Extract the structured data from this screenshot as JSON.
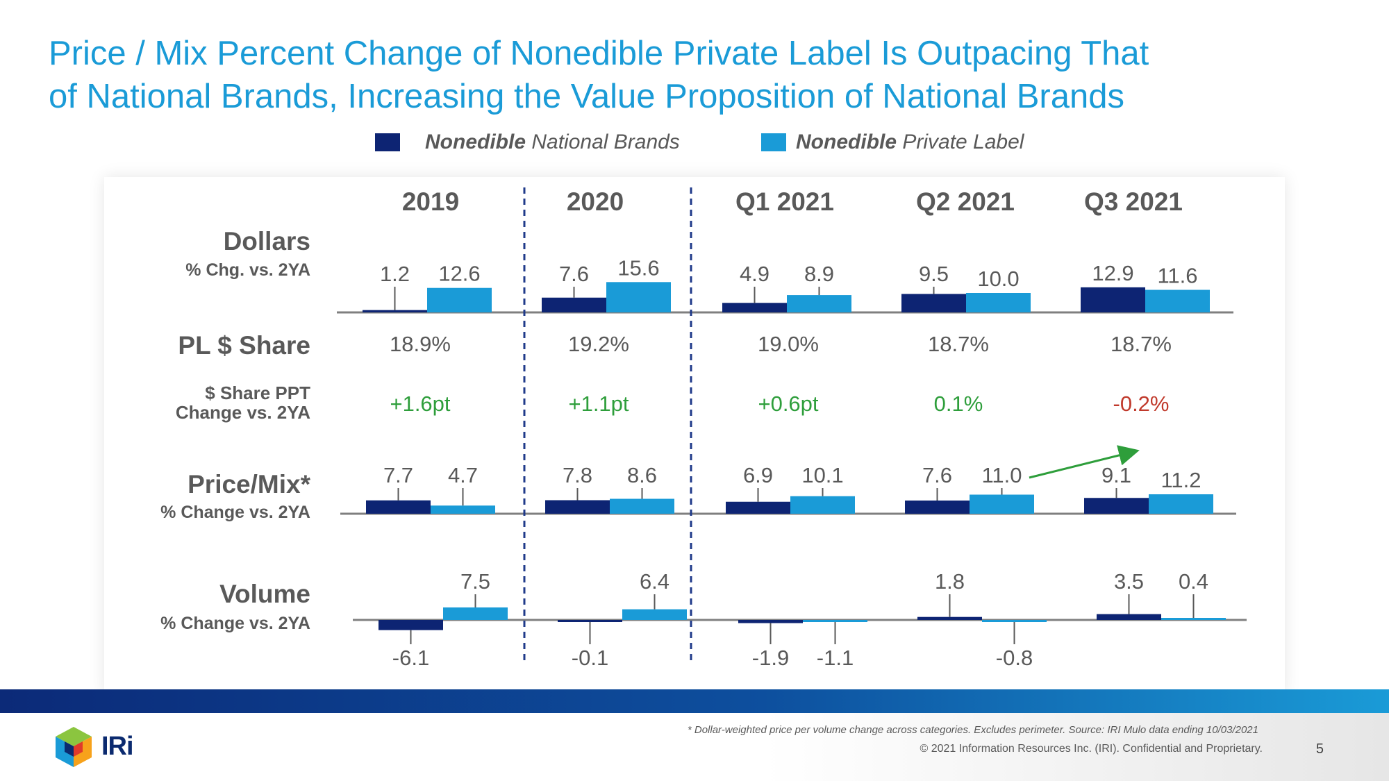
{
  "title_lines": [
    "Price / Mix Percent Change of Nonedible Private Label Is Outpacing That",
    "of National Brands, Increasing the Value Proposition of National Brands"
  ],
  "legend": [
    {
      "bold": "Nonedible",
      "rest": " National Brands",
      "color": "#0d2473"
    },
    {
      "bold": "Nonedible",
      "rest": " Private Label",
      "color": "#1a9bd7"
    }
  ],
  "colors": {
    "national": "#0d2473",
    "private": "#1a9bd7",
    "positive": "#2e9e3b",
    "negative": "#c0392b",
    "axis": "#7f7f7f"
  },
  "chart_data": {
    "type": "bar",
    "title": "Price / Mix Percent Change of Nonedible Private Label Is Outpacing That of National Brands, Increasing the Value Proposition of National Brands",
    "categories": [
      "2019",
      "2020",
      "Q1 2021",
      "Q2  2021",
      "Q3 2021"
    ],
    "series_names": [
      "Nonedible National Brands",
      "Nonedible Private Label"
    ],
    "panels": [
      {
        "key": "dollars",
        "label": "Dollars",
        "sublabel": "% Chg. vs. 2YA",
        "national": [
          1.2,
          7.6,
          4.9,
          9.5,
          12.9
        ],
        "private": [
          12.6,
          15.6,
          8.9,
          10.0,
          11.6
        ],
        "national_labels": [
          "1.2",
          "7.6",
          "4.9",
          "9.5",
          "12.9"
        ],
        "private_labels": [
          "12.6",
          "15.6",
          "8.9",
          "10.0",
          "11.6"
        ]
      },
      {
        "key": "price_mix",
        "label": "Price/Mix*",
        "sublabel": "% Change vs. 2YA",
        "national": [
          7.7,
          7.8,
          6.9,
          7.6,
          9.1
        ],
        "private": [
          4.7,
          8.6,
          10.1,
          11.0,
          11.2
        ],
        "national_labels": [
          "7.7",
          "7.8",
          "6.9",
          "7.6",
          "9.1"
        ],
        "private_labels": [
          "4.7",
          "8.6",
          "10.1",
          "11.0",
          "11.2"
        ]
      },
      {
        "key": "volume",
        "label": "Volume",
        "sublabel": "% Change vs. 2YA",
        "national": [
          -6.1,
          -0.1,
          -1.9,
          1.8,
          3.5
        ],
        "private": [
          7.5,
          6.4,
          -1.1,
          -0.8,
          0.4
        ],
        "national_labels": [
          "-6.1",
          "-0.1",
          "-1.9",
          "1.8",
          "3.5"
        ],
        "private_labels": [
          "7.5",
          "6.4",
          "-1.1",
          "-0.8",
          "0.4"
        ]
      }
    ],
    "pl_share": {
      "label": "PL $ Share",
      "values": [
        "18.9%",
        "19.2%",
        "19.0%",
        "18.7%",
        "18.7%"
      ]
    },
    "share_change": {
      "label_lines": [
        "$ Share PPT",
        "Change vs. 2YA"
      ],
      "values": [
        "+1.6pt",
        "+1.1pt",
        "+0.6pt",
        "0.1%",
        "-0.2%"
      ],
      "signs": [
        "positive",
        "positive",
        "positive",
        "positive",
        "negative"
      ]
    },
    "annotation": "arrow from Q2 2021 Private Label Price/Mix (11.0) to Q3 2021 National Brands Price/Mix (9.1)"
  },
  "footnote": "* Dollar-weighted price per volume change across categories. Excludes perimeter. Source: IRI Mulo data ending 10/03/2021",
  "copyright": "© 2021 Information Resources Inc. (IRI). Confidential and Proprietary.",
  "page_number": "5",
  "logo_text": "IRi"
}
